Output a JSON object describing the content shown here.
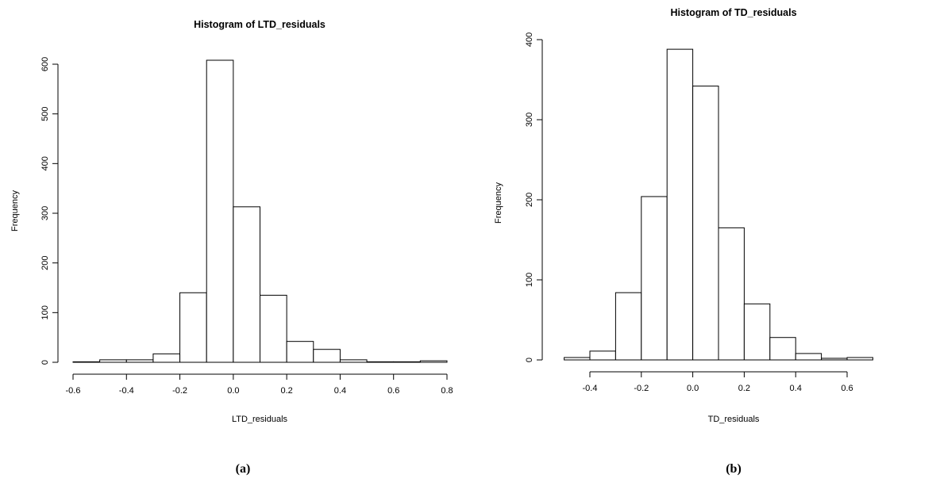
{
  "chart_data": [
    {
      "type": "bar",
      "title": "Histogram of LTD_residuals",
      "xlabel": "LTD_residuals",
      "ylabel": "Frequency",
      "panel_label": "(a)",
      "bin_edges": [
        -0.6,
        -0.5,
        -0.4,
        -0.3,
        -0.2,
        -0.1,
        0.0,
        0.1,
        0.2,
        0.3,
        0.4,
        0.5,
        0.6,
        0.7,
        0.8
      ],
      "values": [
        1,
        5,
        5,
        17,
        140,
        608,
        313,
        135,
        42,
        26,
        5,
        1,
        1,
        3
      ],
      "xlim": [
        -0.6,
        0.8
      ],
      "ylim": [
        0,
        600
      ],
      "x_ticks": [
        -0.6,
        -0.4,
        -0.2,
        0.0,
        0.2,
        0.4,
        0.6,
        0.8
      ],
      "x_tick_labels": [
        "-0.6",
        "-0.4",
        "-0.2",
        "0.0",
        "0.2",
        "0.4",
        "0.6",
        "0.8"
      ],
      "y_ticks": [
        0,
        100,
        200,
        300,
        400,
        500,
        600
      ],
      "y_tick_labels": [
        "0",
        "100",
        "200",
        "300",
        "400",
        "500",
        "600"
      ],
      "grid": false
    },
    {
      "type": "bar",
      "title": "Histogram of TD_residuals",
      "xlabel": "TD_residuals",
      "ylabel": "Frequency",
      "panel_label": "(b)",
      "bin_edges": [
        -0.5,
        -0.4,
        -0.3,
        -0.2,
        -0.1,
        0.0,
        0.1,
        0.2,
        0.3,
        0.4,
        0.5,
        0.6,
        0.7
      ],
      "values": [
        3,
        11,
        84,
        204,
        388,
        342,
        165,
        70,
        28,
        8,
        2,
        3
      ],
      "xlim": [
        -0.4,
        0.6
      ],
      "ylim": [
        0,
        400
      ],
      "x_ticks": [
        -0.4,
        -0.2,
        0.0,
        0.2,
        0.4,
        0.6
      ],
      "x_tick_labels": [
        "-0.4",
        "-0.2",
        "0.0",
        "0.2",
        "0.4",
        "0.6"
      ],
      "y_ticks": [
        0,
        100,
        200,
        300,
        400
      ],
      "y_tick_labels": [
        "0",
        "100",
        "200",
        "300",
        "400"
      ],
      "grid": false
    }
  ]
}
